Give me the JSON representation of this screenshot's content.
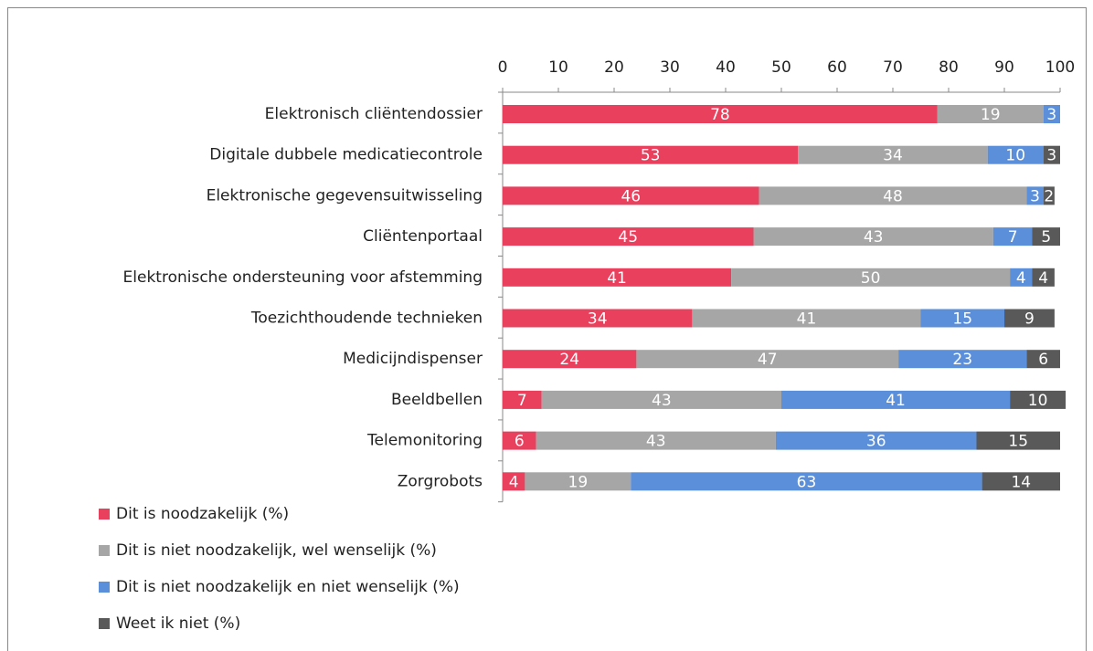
{
  "chart_data": {
    "type": "stacked_bar_horizontal",
    "categories": [
      "Elektronisch cliëntendossier",
      "Digitale dubbele medicatiecontrole",
      "Elektronische gegevensuitwisseling",
      "Cliëntenportaal",
      "Elektronische ondersteuning voor afstemming",
      "Toezichthoudende technieken",
      "Medicijndispenser",
      "Beeldbellen",
      "Telemonitoring",
      "Zorgrobots"
    ],
    "series": [
      {
        "name": "Dit is noodzakelijk (%)",
        "color": "#e8405d",
        "values": [
          78,
          53,
          46,
          45,
          41,
          34,
          24,
          7,
          6,
          4
        ]
      },
      {
        "name": "Dit is niet noodzakelijk, wel wenselijk (%)",
        "color": "#a6a6a6",
        "values": [
          19,
          34,
          48,
          43,
          50,
          41,
          47,
          43,
          43,
          19
        ]
      },
      {
        "name": "Dit is niet noodzakelijk en niet wenselijk (%)",
        "color": "#5b8fd9",
        "values": [
          3,
          10,
          3,
          7,
          4,
          15,
          23,
          41,
          36,
          63
        ]
      },
      {
        "name": "Weet ik niet (%)",
        "color": "#595959",
        "values": [
          null,
          3,
          2,
          5,
          4,
          9,
          6,
          10,
          15,
          14
        ]
      }
    ],
    "xlim": [
      0,
      100
    ],
    "xticks": [
      0,
      10,
      20,
      30,
      40,
      50,
      60,
      70,
      80,
      90,
      100
    ]
  }
}
